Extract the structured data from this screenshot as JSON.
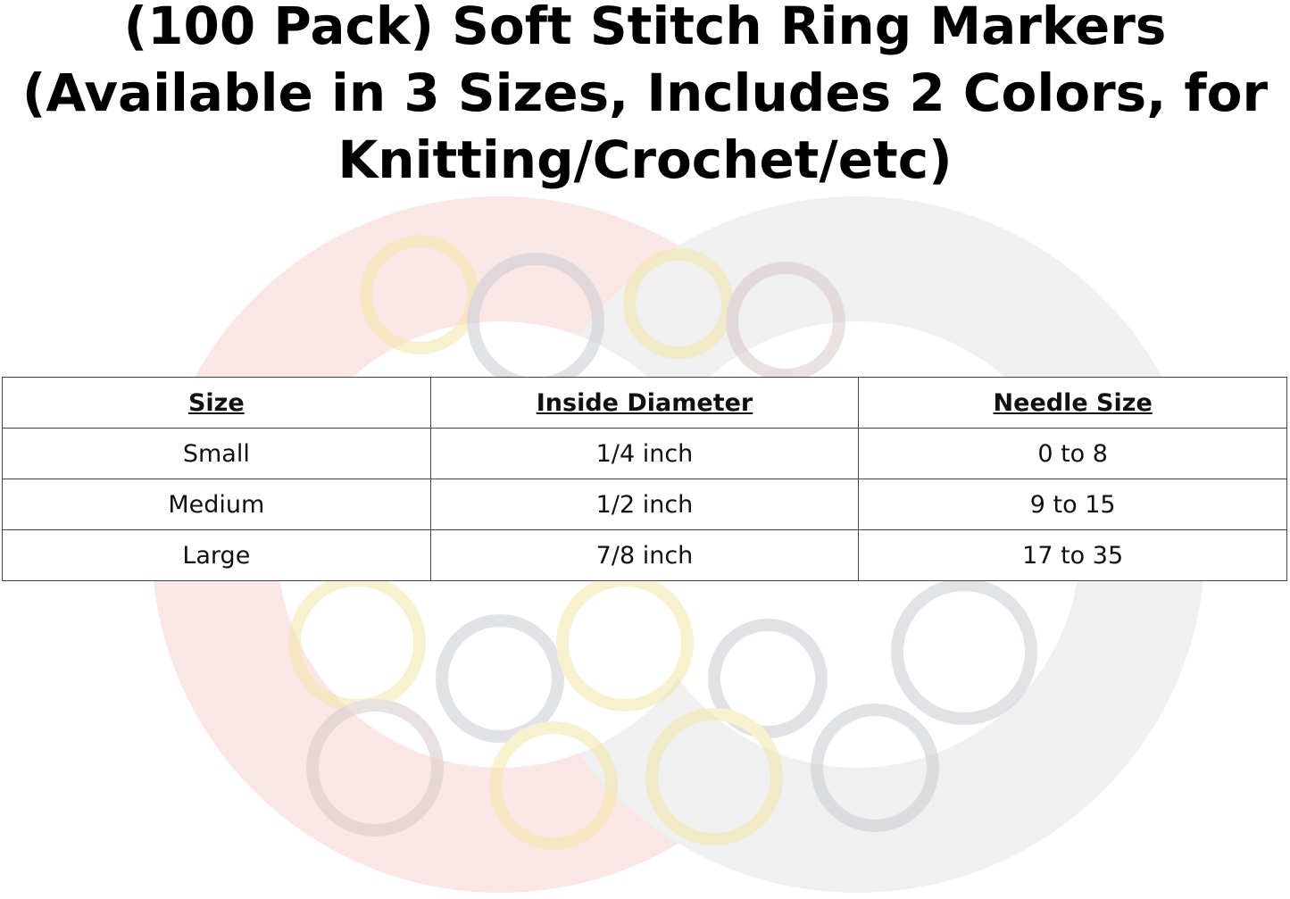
{
  "title": "(100 Pack) Soft Stitch Ring Markers (Available in 3 Sizes, Includes 2 Colors, for Knitting/Crochet/etc)",
  "table": {
    "headers": [
      "Size",
      "Inside Diameter",
      "Needle Size"
    ],
    "rows": [
      [
        "Small",
        "1/4 inch",
        "0 to 8"
      ],
      [
        "Medium",
        "1/2 inch",
        "9 to 15"
      ],
      [
        "Large",
        "7/8 inch",
        "17 to 35"
      ]
    ]
  },
  "colors": {
    "watermark_red": "#f7d9d9",
    "watermark_gray": "#ececec",
    "ring_yellow": "#f2e6a8",
    "ring_dark": "#c9ccd2"
  }
}
